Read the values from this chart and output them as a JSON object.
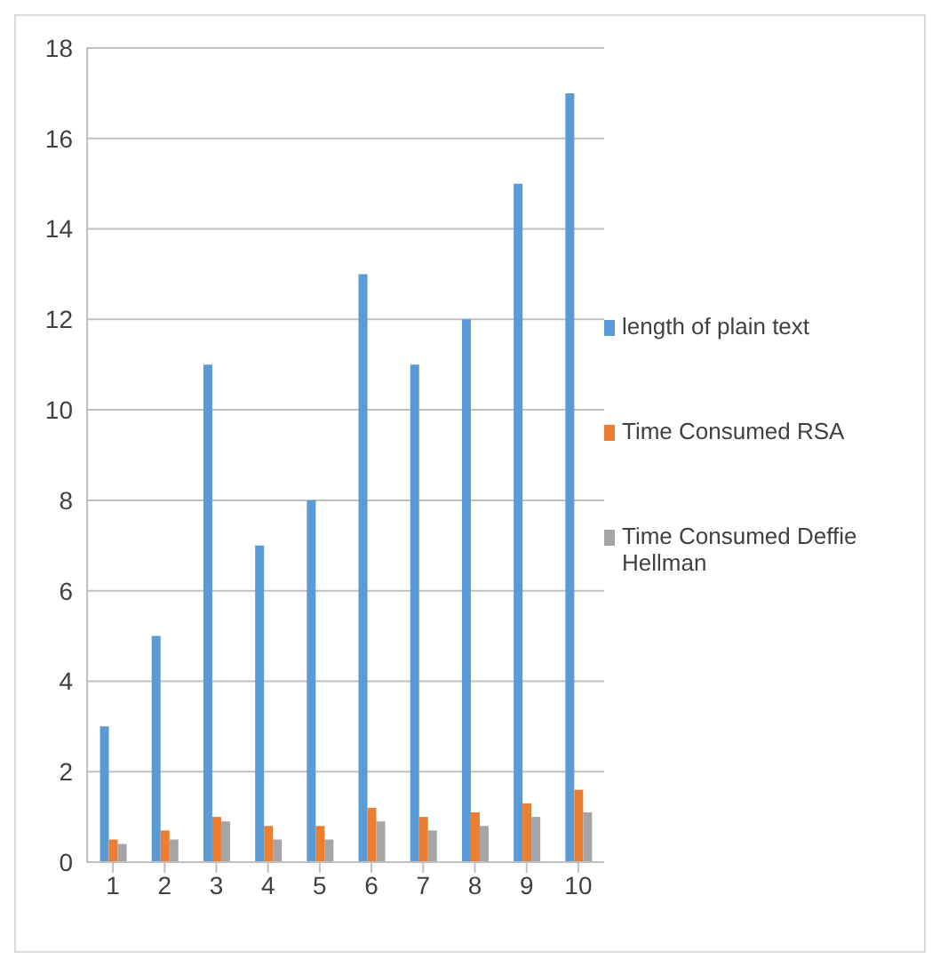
{
  "chart_data": {
    "type": "bar",
    "categories": [
      "1",
      "2",
      "3",
      "4",
      "5",
      "6",
      "7",
      "8",
      "9",
      "10"
    ],
    "series": [
      {
        "name": "length of plain text",
        "color": "#5b9bd5",
        "values": [
          3,
          5,
          11,
          7,
          8,
          13,
          11,
          12,
          15,
          17
        ]
      },
      {
        "name": "Time Consumed RSA",
        "color": "#ed7d31",
        "values": [
          0.5,
          0.7,
          1.0,
          0.8,
          0.8,
          1.2,
          1.0,
          1.1,
          1.3,
          1.6
        ]
      },
      {
        "name": "Time Consumed Deffie Hellman",
        "color": "#a5a5a5",
        "values": [
          0.4,
          0.5,
          0.9,
          0.5,
          0.5,
          0.9,
          0.7,
          0.8,
          1.0,
          1.1
        ]
      }
    ],
    "ylim": [
      0,
      18
    ],
    "yticks": [
      0,
      2,
      4,
      6,
      8,
      10,
      12,
      14,
      16,
      18
    ],
    "grid": "y",
    "legend": "right"
  }
}
